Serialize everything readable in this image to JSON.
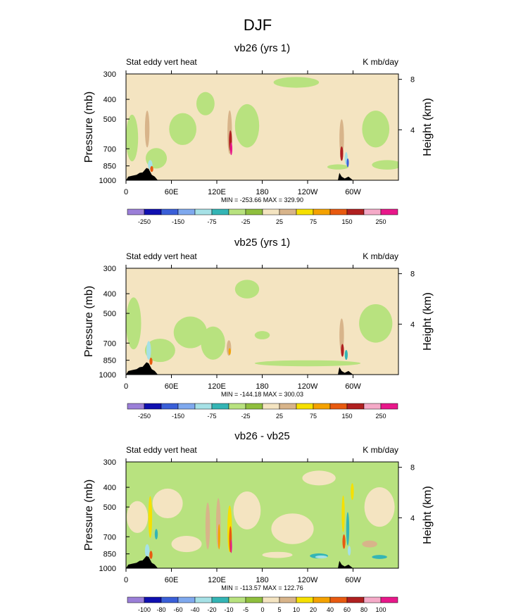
{
  "figure": {
    "title": "DJF"
  },
  "palette": {
    "c0": "#9b7fd8",
    "c1": "#1010b0",
    "c2": "#3a5fd8",
    "c3": "#7fa9ee",
    "c4": "#a6e1e6",
    "c5": "#34b5b5",
    "c6": "#b8e27f",
    "c7": "#8fbf3e",
    "c8": "#f4e4c1",
    "c9": "#d8b48a",
    "c10": "#f6e000",
    "c11": "#f5a200",
    "c12": "#e85a10",
    "c13": "#b02020",
    "c14": "#f5aac8",
    "c15": "#e8188a",
    "topography": "#000000"
  },
  "chart_data": [
    {
      "type": "heatmap",
      "title": "vb26 (yrs 1)",
      "left_label": "Stat eddy vert heat",
      "right_label": "K mb/day",
      "ylabel": "Pressure (mb)",
      "ylabel_right": "Height (km)",
      "yticks": [
        "300",
        "400",
        "500",
        "700",
        "850",
        "1000"
      ],
      "yticks_right": [
        "8",
        "4"
      ],
      "xticks": [
        "0",
        "60E",
        "120E",
        "180",
        "120W",
        "60W"
      ],
      "xlim": [
        0,
        360
      ],
      "ylim": [
        1000,
        300
      ],
      "min_max": "MIN = -253.66   MAX = 329.90",
      "colorbar_labels": [
        "-250",
        "-150",
        "-75",
        "-25",
        "25",
        "75",
        "150",
        "250"
      ],
      "colorbar_levels": [
        -250,
        -200,
        -150,
        -100,
        -75,
        -50,
        -25,
        0,
        25,
        50,
        75,
        100,
        150,
        200,
        250
      ],
      "background_value": 0,
      "features": [
        {
          "lon": 8,
          "p": 620,
          "dlon": 8,
          "dp": 320,
          "value": -40
        },
        {
          "lon": 40,
          "p": 780,
          "dlon": 14,
          "dp": 180,
          "value": -30
        },
        {
          "lon": 75,
          "p": 560,
          "dlon": 18,
          "dp": 200,
          "value": -30
        },
        {
          "lon": 105,
          "p": 420,
          "dlon": 12,
          "dp": 110,
          "value": -30
        },
        {
          "lon": 160,
          "p": 540,
          "dlon": 16,
          "dp": 260,
          "value": -30
        },
        {
          "lon": 225,
          "p": 330,
          "dlon": 30,
          "dp": 40,
          "value": -30
        },
        {
          "lon": 330,
          "p": 560,
          "dlon": 18,
          "dp": 230,
          "value": -30
        },
        {
          "lon": 345,
          "p": 840,
          "dlon": 20,
          "dp": 90,
          "value": -30
        },
        {
          "lon": 280,
          "p": 860,
          "dlon": 14,
          "dp": 50,
          "value": -30
        },
        {
          "lon": 28,
          "p": 560,
          "dlon": 3,
          "dp": 230,
          "value": 30
        },
        {
          "lon": 137,
          "p": 580,
          "dlon": 3,
          "dp": 280,
          "value": 40
        },
        {
          "lon": 138,
          "p": 640,
          "dlon": 2,
          "dp": 150,
          "value": 160
        },
        {
          "lon": 139,
          "p": 700,
          "dlon": 1.5,
          "dp": 100,
          "value": 260
        },
        {
          "lon": 32,
          "p": 840,
          "dlon": 3,
          "dp": 90,
          "value": -90
        },
        {
          "lon": 34,
          "p": 880,
          "dlon": 2,
          "dp": 60,
          "value": 120
        },
        {
          "lon": 29,
          "p": 900,
          "dlon": 2,
          "dp": 60,
          "value": 30
        },
        {
          "lon": 285,
          "p": 620,
          "dlon": 3,
          "dp": 260,
          "value": 30
        },
        {
          "lon": 285,
          "p": 740,
          "dlon": 2,
          "dp": 120,
          "value": 170
        },
        {
          "lon": 291,
          "p": 780,
          "dlon": 2,
          "dp": 110,
          "value": -80
        },
        {
          "lon": 293,
          "p": 820,
          "dlon": 1.5,
          "dp": 80,
          "value": -200
        }
      ],
      "topography": [
        {
          "lon": 0,
          "p": 1000
        },
        {
          "lon": 3,
          "p": 960
        },
        {
          "lon": 8,
          "p": 950
        },
        {
          "lon": 14,
          "p": 940
        },
        {
          "lon": 18,
          "p": 920
        },
        {
          "lon": 22,
          "p": 915
        },
        {
          "lon": 27,
          "p": 870
        },
        {
          "lon": 30,
          "p": 880
        },
        {
          "lon": 34,
          "p": 940
        },
        {
          "lon": 38,
          "p": 960
        },
        {
          "lon": 42,
          "p": 1000
        },
        {
          "lon": 280,
          "p": 1000
        },
        {
          "lon": 282,
          "p": 920
        },
        {
          "lon": 285,
          "p": 960
        },
        {
          "lon": 289,
          "p": 980
        },
        {
          "lon": 294,
          "p": 960
        },
        {
          "lon": 300,
          "p": 1000
        }
      ]
    },
    {
      "type": "heatmap",
      "title": "vb25 (yrs 1)",
      "left_label": "Stat eddy vert heat",
      "right_label": "K mb/day",
      "ylabel": "Pressure (mb)",
      "ylabel_right": "Height (km)",
      "yticks": [
        "300",
        "400",
        "500",
        "700",
        "850",
        "1000"
      ],
      "yticks_right": [
        "8",
        "4"
      ],
      "xticks": [
        "0",
        "60E",
        "120E",
        "180",
        "120W",
        "60W"
      ],
      "xlim": [
        0,
        360
      ],
      "ylim": [
        1000,
        300
      ],
      "min_max": "MIN = -144.18   MAX = 300.03",
      "colorbar_labels": [
        "-250",
        "-150",
        "-75",
        "-25",
        "25",
        "75",
        "150",
        "250"
      ],
      "colorbar_levels": [
        -250,
        -200,
        -150,
        -100,
        -75,
        -50,
        -25,
        0,
        25,
        50,
        75,
        100,
        150,
        200,
        250
      ],
      "background_value": 0,
      "features": [
        {
          "lon": 10,
          "p": 560,
          "dlon": 10,
          "dp": 320,
          "value": -40
        },
        {
          "lon": 45,
          "p": 760,
          "dlon": 20,
          "dp": 200,
          "value": -30
        },
        {
          "lon": 85,
          "p": 620,
          "dlon": 22,
          "dp": 220,
          "value": -30
        },
        {
          "lon": 115,
          "p": 700,
          "dlon": 16,
          "dp": 260,
          "value": -30
        },
        {
          "lon": 160,
          "p": 380,
          "dlon": 16,
          "dp": 80,
          "value": -30
        },
        {
          "lon": 240,
          "p": 880,
          "dlon": 70,
          "dp": 60,
          "value": -30
        },
        {
          "lon": 330,
          "p": 560,
          "dlon": 22,
          "dp": 240,
          "value": -30
        },
        {
          "lon": 180,
          "p": 640,
          "dlon": 10,
          "dp": 60,
          "value": -30
        },
        {
          "lon": 136,
          "p": 740,
          "dlon": 3,
          "dp": 130,
          "value": 40
        },
        {
          "lon": 137,
          "p": 770,
          "dlon": 1.5,
          "dp": 60,
          "value": 90
        },
        {
          "lon": 30,
          "p": 760,
          "dlon": 3,
          "dp": 160,
          "value": -80
        },
        {
          "lon": 33,
          "p": 860,
          "dlon": 2,
          "dp": 70,
          "value": 120
        },
        {
          "lon": 285,
          "p": 640,
          "dlon": 3,
          "dp": 240,
          "value": 30
        },
        {
          "lon": 286,
          "p": 760,
          "dlon": 2,
          "dp": 110,
          "value": 180
        },
        {
          "lon": 291,
          "p": 800,
          "dlon": 2,
          "dp": 90,
          "value": -60
        }
      ],
      "topography": [
        {
          "lon": 0,
          "p": 1000
        },
        {
          "lon": 3,
          "p": 960
        },
        {
          "lon": 8,
          "p": 950
        },
        {
          "lon": 14,
          "p": 940
        },
        {
          "lon": 18,
          "p": 920
        },
        {
          "lon": 22,
          "p": 915
        },
        {
          "lon": 27,
          "p": 870
        },
        {
          "lon": 30,
          "p": 880
        },
        {
          "lon": 34,
          "p": 940
        },
        {
          "lon": 38,
          "p": 960
        },
        {
          "lon": 42,
          "p": 1000
        },
        {
          "lon": 280,
          "p": 1000
        },
        {
          "lon": 282,
          "p": 920
        },
        {
          "lon": 285,
          "p": 960
        },
        {
          "lon": 289,
          "p": 980
        },
        {
          "lon": 294,
          "p": 960
        },
        {
          "lon": 300,
          "p": 1000
        }
      ]
    },
    {
      "type": "heatmap",
      "title": "vb26 - vb25",
      "left_label": "Stat eddy vert heat",
      "right_label": "K mb/day",
      "ylabel": "Pressure (mb)",
      "ylabel_right": "Height (km)",
      "yticks": [
        "300",
        "400",
        "500",
        "700",
        "850",
        "1000"
      ],
      "yticks_right": [
        "8",
        "4"
      ],
      "xticks": [
        "0",
        "60E",
        "120E",
        "180",
        "120W",
        "60W"
      ],
      "xlim": [
        0,
        360
      ],
      "ylim": [
        1000,
        300
      ],
      "min_max": "MIN = -113.57   MAX = 122.76",
      "colorbar_labels": [
        "-100",
        "-80",
        "-60",
        "-40",
        "-20",
        "-10",
        "-5",
        "0",
        "5",
        "10",
        "20",
        "40",
        "60",
        "80",
        "100"
      ],
      "colorbar_levels": [
        -100,
        -80,
        -60,
        -40,
        -20,
        -10,
        -5,
        0,
        5,
        10,
        20,
        40,
        60,
        80,
        100
      ],
      "background_value": -7,
      "features": [
        {
          "lon": 15,
          "p": 560,
          "dlon": 14,
          "dp": 200,
          "value": 2
        },
        {
          "lon": 55,
          "p": 480,
          "dlon": 20,
          "dp": 160,
          "value": 2
        },
        {
          "lon": 80,
          "p": 760,
          "dlon": 20,
          "dp": 140,
          "value": 2
        },
        {
          "lon": 160,
          "p": 520,
          "dlon": 18,
          "dp": 220,
          "value": 2
        },
        {
          "lon": 220,
          "p": 640,
          "dlon": 28,
          "dp": 220,
          "value": 2
        },
        {
          "lon": 255,
          "p": 360,
          "dlon": 22,
          "dp": 60,
          "value": 2
        },
        {
          "lon": 335,
          "p": 500,
          "dlon": 20,
          "dp": 220,
          "value": 2
        },
        {
          "lon": 200,
          "p": 860,
          "dlon": 20,
          "dp": 60,
          "value": 2
        },
        {
          "lon": 32,
          "p": 560,
          "dlon": 2.5,
          "dp": 260,
          "value": 12
        },
        {
          "lon": 108,
          "p": 620,
          "dlon": 3,
          "dp": 320,
          "value": 7
        },
        {
          "lon": 122,
          "p": 600,
          "dlon": 3,
          "dp": 330,
          "value": 8
        },
        {
          "lon": 123,
          "p": 700,
          "dlon": 1.5,
          "dp": 200,
          "value": 30
        },
        {
          "lon": 137,
          "p": 640,
          "dlon": 3,
          "dp": 330,
          "value": 12
        },
        {
          "lon": 138,
          "p": 720,
          "dlon": 1.8,
          "dp": 210,
          "value": 50
        },
        {
          "lon": 139,
          "p": 780,
          "dlon": 1,
          "dp": 120,
          "value": 110
        },
        {
          "lon": 28,
          "p": 820,
          "dlon": 3,
          "dp": 120,
          "value": -30
        },
        {
          "lon": 33,
          "p": 860,
          "dlon": 2,
          "dp": 80,
          "value": 45
        },
        {
          "lon": 40,
          "p": 680,
          "dlon": 2,
          "dp": 80,
          "value": -12
        },
        {
          "lon": 255,
          "p": 870,
          "dlon": 12,
          "dp": 50,
          "value": -15
        },
        {
          "lon": 258,
          "p": 880,
          "dlon": 8,
          "dp": 30,
          "value": -30
        },
        {
          "lon": 335,
          "p": 880,
          "dlon": 10,
          "dp": 40,
          "value": -12
        },
        {
          "lon": 287,
          "p": 540,
          "dlon": 2,
          "dp": 220,
          "value": 12
        },
        {
          "lon": 288,
          "p": 740,
          "dlon": 2,
          "dp": 120,
          "value": 45
        },
        {
          "lon": 293,
          "p": 640,
          "dlon": 2,
          "dp": 240,
          "value": -15
        },
        {
          "lon": 295,
          "p": 820,
          "dlon": 2,
          "dp": 90,
          "value": -40
        },
        {
          "lon": 299,
          "p": 420,
          "dlon": 2,
          "dp": 80,
          "value": 12
        },
        {
          "lon": 322,
          "p": 760,
          "dlon": 10,
          "dp": 60,
          "value": 6
        }
      ],
      "topography": [
        {
          "lon": 0,
          "p": 1000
        },
        {
          "lon": 3,
          "p": 960
        },
        {
          "lon": 8,
          "p": 950
        },
        {
          "lon": 14,
          "p": 940
        },
        {
          "lon": 18,
          "p": 920
        },
        {
          "lon": 22,
          "p": 915
        },
        {
          "lon": 27,
          "p": 870
        },
        {
          "lon": 30,
          "p": 880
        },
        {
          "lon": 34,
          "p": 940
        },
        {
          "lon": 38,
          "p": 960
        },
        {
          "lon": 42,
          "p": 1000
        },
        {
          "lon": 280,
          "p": 1000
        },
        {
          "lon": 282,
          "p": 920
        },
        {
          "lon": 285,
          "p": 960
        },
        {
          "lon": 289,
          "p": 980
        },
        {
          "lon": 294,
          "p": 960
        },
        {
          "lon": 300,
          "p": 1000
        }
      ]
    }
  ]
}
